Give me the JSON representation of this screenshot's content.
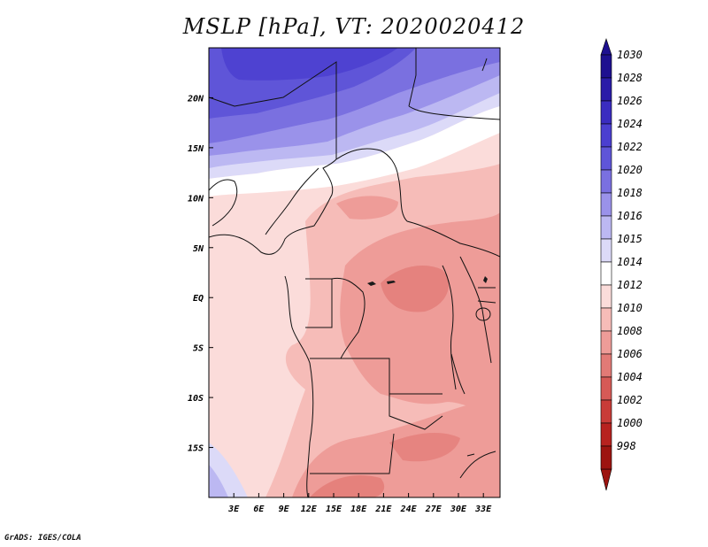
{
  "title": "MSLP [hPa], VT: 2020020412",
  "credit": "GrADS: IGES/COLA",
  "map": {
    "variable": "MSLP",
    "units": "hPa",
    "valid_time": "2020020412",
    "lon_range": [
      0,
      35
    ],
    "lat_range": [
      -20,
      25
    ],
    "x_ticks": [
      "3E",
      "6E",
      "9E",
      "12E",
      "15E",
      "18E",
      "21E",
      "24E",
      "27E",
      "30E",
      "33E"
    ],
    "y_ticks": [
      "20N",
      "15N",
      "10N",
      "5N",
      "EQ",
      "5S",
      "10S",
      "15S"
    ]
  },
  "legend": {
    "levels": [
      {
        "label": "1030",
        "color": "#1e1090"
      },
      {
        "label": "1028",
        "color": "#2a1ca8"
      },
      {
        "label": "1026",
        "color": "#3a2cc0"
      },
      {
        "label": "1024",
        "color": "#4b3fd0"
      },
      {
        "label": "1022",
        "color": "#5f55d8"
      },
      {
        "label": "1020",
        "color": "#7a70e0"
      },
      {
        "label": "1018",
        "color": "#9a92ea"
      },
      {
        "label": "1016",
        "color": "#bcb8f2"
      },
      {
        "label": "1015",
        "color": "#dcdaf8"
      },
      {
        "label": "1014",
        "color": "#ffffff"
      },
      {
        "label": "1012",
        "color": "#fbdcda"
      },
      {
        "label": "1010",
        "color": "#f6bcb8"
      },
      {
        "label": "1008",
        "color": "#ee9c98"
      },
      {
        "label": "1006",
        "color": "#e27a76"
      },
      {
        "label": "1004",
        "color": "#d65a56"
      },
      {
        "label": "1002",
        "color": "#c93c38"
      },
      {
        "label": "1000",
        "color": "#b7221f"
      },
      {
        "label": "998",
        "color": "#9d1410"
      }
    ]
  }
}
